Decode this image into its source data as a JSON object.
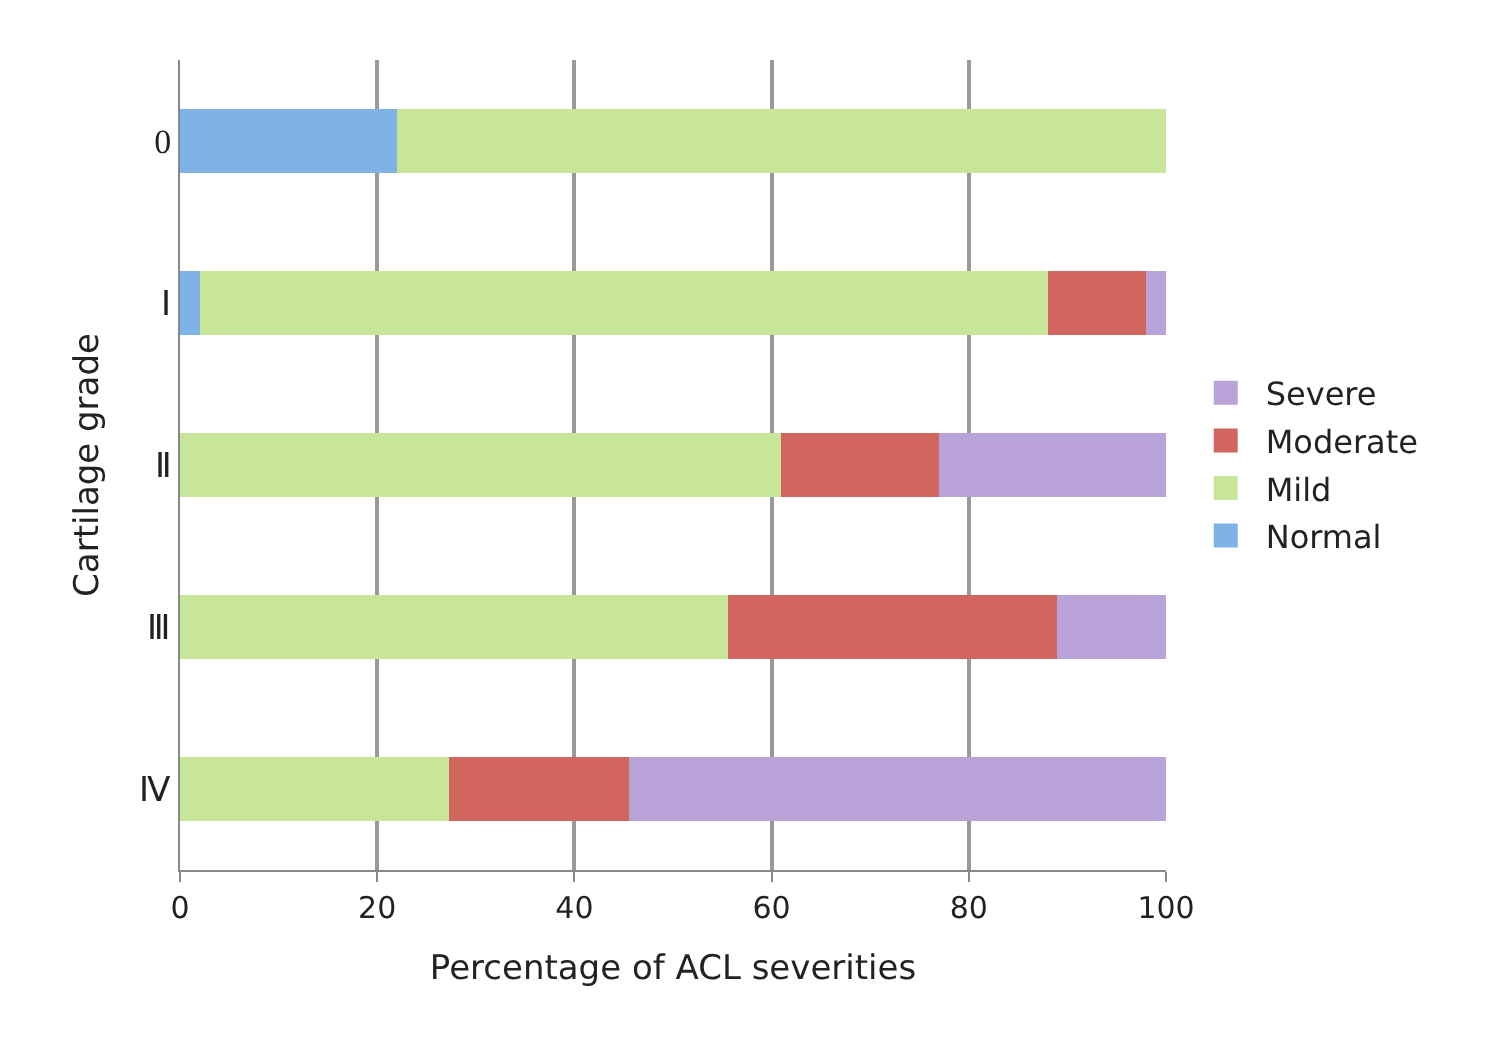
{
  "chart_data": {
    "type": "bar",
    "orientation": "horizontal",
    "stacked": true,
    "xlabel": "Percentage of ACL severities",
    "ylabel": "Cartilage grade",
    "categories": [
      "0",
      "Ⅰ",
      "Ⅱ",
      "Ⅲ",
      "Ⅳ"
    ],
    "series": [
      {
        "name": "Normal",
        "color": "#7fb2e5",
        "values": [
          22,
          2,
          0,
          0,
          0
        ]
      },
      {
        "name": "Mild",
        "color": "#c8e69a",
        "values": [
          78,
          86,
          61,
          55.6,
          27.3
        ]
      },
      {
        "name": "Moderate",
        "color": "#d2665f",
        "values": [
          0,
          10,
          16,
          33.3,
          18.2
        ]
      },
      {
        "name": "Severe",
        "color": "#b8a2d8",
        "values": [
          0,
          2,
          23,
          11.1,
          54.5
        ]
      }
    ],
    "xlim": [
      0,
      100
    ],
    "xticks": [
      0,
      20,
      40,
      60,
      80,
      100
    ],
    "grid": "x",
    "legend": "right"
  }
}
